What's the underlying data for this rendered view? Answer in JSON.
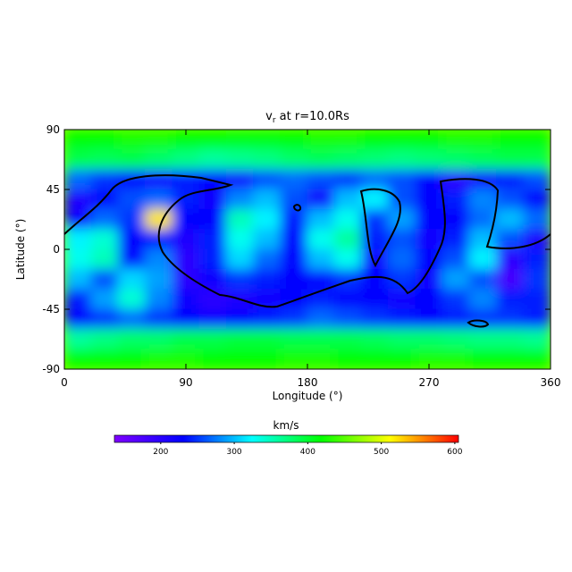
{
  "chart_data": {
    "type": "heatmap",
    "title": [
      "v",
      "r",
      " at r=10.0Rs"
    ],
    "x_label": "Longitude (°)",
    "y_label": "Latitude (°)",
    "x": [
      10,
      30,
      50,
      70,
      90,
      110,
      130,
      150,
      170,
      190,
      210,
      230,
      250,
      270,
      290,
      310,
      330,
      350
    ],
    "y": [
      82.5,
      67.5,
      52.5,
      37.5,
      22.5,
      7.5,
      -7.5,
      -22.5,
      -37.5,
      -52.5,
      -67.5,
      -82.5
    ],
    "xlim": [
      0,
      360
    ],
    "ylim": [
      -90,
      90
    ],
    "xticks": [
      0,
      90,
      180,
      270,
      360
    ],
    "yticks": [
      -90,
      -45,
      0,
      45,
      90
    ],
    "values": [
      [
        420,
        420,
        425,
        425,
        420,
        420,
        415,
        415,
        420,
        425,
        425,
        420,
        420,
        420,
        425,
        425,
        420,
        420
      ],
      [
        390,
        385,
        390,
        380,
        370,
        360,
        365,
        370,
        380,
        385,
        380,
        375,
        370,
        375,
        380,
        385,
        390,
        390
      ],
      [
        270,
        250,
        230,
        220,
        240,
        230,
        220,
        260,
        270,
        260,
        250,
        270,
        260,
        230,
        200,
        220,
        240,
        260
      ],
      [
        210,
        230,
        260,
        270,
        240,
        220,
        280,
        300,
        260,
        220,
        300,
        320,
        260,
        230,
        240,
        280,
        260,
        230
      ],
      [
        220,
        270,
        250,
        520,
        230,
        230,
        350,
        320,
        240,
        300,
        330,
        250,
        290,
        230,
        230,
        270,
        300,
        270
      ],
      [
        320,
        340,
        230,
        240,
        210,
        240,
        330,
        300,
        230,
        330,
        360,
        240,
        260,
        220,
        240,
        300,
        260,
        210
      ],
      [
        330,
        350,
        230,
        280,
        200,
        240,
        310,
        270,
        230,
        300,
        330,
        220,
        270,
        230,
        260,
        320,
        200,
        240
      ],
      [
        300,
        260,
        310,
        290,
        200,
        220,
        250,
        240,
        230,
        230,
        250,
        230,
        250,
        220,
        290,
        260,
        180,
        250
      ],
      [
        240,
        290,
        340,
        280,
        220,
        200,
        210,
        220,
        230,
        240,
        230,
        230,
        220,
        230,
        250,
        280,
        240,
        240
      ],
      [
        230,
        250,
        270,
        250,
        230,
        220,
        230,
        240,
        250,
        270,
        260,
        250,
        240,
        230,
        240,
        250,
        250,
        240
      ],
      [
        360,
        370,
        380,
        380,
        390,
        390,
        395,
        395,
        390,
        390,
        390,
        385,
        380,
        380,
        375,
        370,
        370,
        365
      ],
      [
        420,
        420,
        420,
        425,
        425,
        420,
        420,
        420,
        425,
        425,
        420,
        420,
        420,
        425,
        425,
        420,
        420,
        420
      ]
    ],
    "colorbar_label": "km/s",
    "clim": [
      137,
      605
    ],
    "cticks": [
      200,
      300,
      400,
      500,
      600
    ],
    "colormap": [
      "#7f00ff",
      "#0000ff",
      "#00ffff",
      "#00ff00",
      "#ffff00",
      "#ff0000"
    ]
  }
}
